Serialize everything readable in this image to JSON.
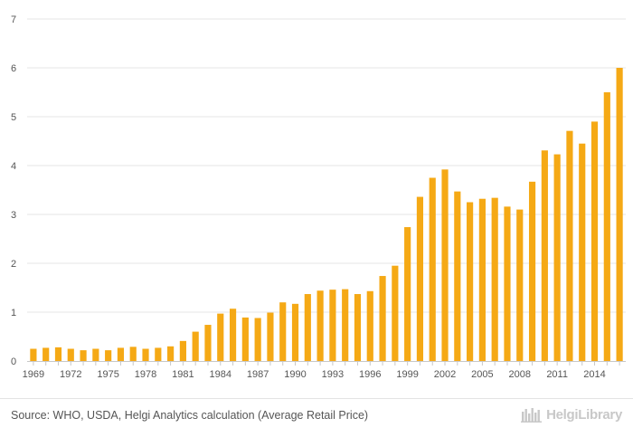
{
  "chart_data": {
    "type": "bar",
    "title": "",
    "xlabel": "",
    "ylabel": "",
    "ylim": [
      0,
      7
    ],
    "yticks": [
      "0",
      "1",
      "2",
      "3",
      "4",
      "5",
      "6",
      "7"
    ],
    "grid": true,
    "bar_color": "#f5a915",
    "categories": [
      "1969",
      "1970",
      "1971",
      "1972",
      "1973",
      "1974",
      "1975",
      "1976",
      "1977",
      "1978",
      "1979",
      "1980",
      "1981",
      "1982",
      "1983",
      "1984",
      "1985",
      "1986",
      "1987",
      "1988",
      "1989",
      "1990",
      "1991",
      "1992",
      "1993",
      "1994",
      "1995",
      "1996",
      "1997",
      "1998",
      "1999",
      "2000",
      "2001",
      "2002",
      "2003",
      "2004",
      "2005",
      "2006",
      "2007",
      "2008",
      "2009",
      "2010",
      "2011",
      "2012",
      "2013",
      "2014",
      "2015",
      "2016"
    ],
    "x_tick_labels": [
      "1969",
      "1972",
      "1975",
      "1978",
      "1981",
      "1984",
      "1987",
      "1990",
      "1993",
      "1996",
      "1999",
      "2002",
      "2005",
      "2008",
      "2011",
      "2014"
    ],
    "values": [
      0.25,
      0.27,
      0.28,
      0.25,
      0.22,
      0.25,
      0.22,
      0.27,
      0.29,
      0.25,
      0.27,
      0.3,
      0.41,
      0.6,
      0.74,
      0.97,
      1.07,
      0.89,
      0.88,
      0.99,
      1.2,
      1.17,
      1.37,
      1.44,
      1.46,
      1.47,
      1.37,
      1.43,
      1.74,
      1.95,
      2.74,
      3.36,
      3.75,
      3.92,
      3.47,
      3.25,
      3.32,
      3.34,
      3.16,
      3.1,
      3.67,
      4.31,
      4.23,
      4.71,
      4.45,
      4.9,
      5.5,
      6.0
    ]
  },
  "footer": {
    "source": "Source: WHO, USDA, Helgi Analytics calculation (Average Retail Price)",
    "brand": "HelgiLibrary"
  }
}
